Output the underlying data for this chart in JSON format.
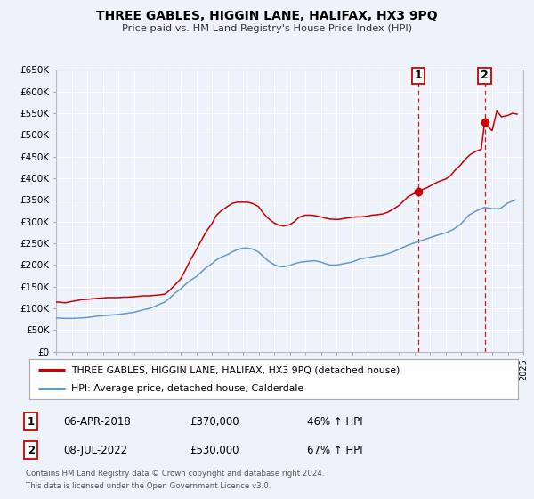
{
  "title": "THREE GABLES, HIGGIN LANE, HALIFAX, HX3 9PQ",
  "subtitle": "Price paid vs. HM Land Registry's House Price Index (HPI)",
  "legend_label_red": "THREE GABLES, HIGGIN LANE, HALIFAX, HX3 9PQ (detached house)",
  "legend_label_blue": "HPI: Average price, detached house, Calderdale",
  "footnote1": "Contains HM Land Registry data © Crown copyright and database right 2024.",
  "footnote2": "This data is licensed under the Open Government Licence v3.0.",
  "red_color": "#cc0000",
  "blue_color": "#6699cc",
  "marker1_date": 2018.27,
  "marker1_value": 370000,
  "marker2_date": 2022.52,
  "marker2_value": 530000,
  "table_entries": [
    {
      "num": "1",
      "date": "06-APR-2018",
      "price": "£370,000",
      "hpi": "46% ↑ HPI"
    },
    {
      "num": "2",
      "date": "08-JUL-2022",
      "price": "£530,000",
      "hpi": "67% ↑ HPI"
    }
  ],
  "ylim": [
    0,
    650000
  ],
  "xlim": [
    1995,
    2025
  ],
  "ytick_values": [
    0,
    50000,
    100000,
    150000,
    200000,
    250000,
    300000,
    350000,
    400000,
    450000,
    500000,
    550000,
    600000,
    650000
  ],
  "ytick_labels": [
    "£0",
    "£50K",
    "£100K",
    "£150K",
    "£200K",
    "£250K",
    "£300K",
    "£350K",
    "£400K",
    "£450K",
    "£500K",
    "£550K",
    "£600K",
    "£650K"
  ],
  "background_color": "#eef2fb",
  "plot_bg_color": "#eef2fb",
  "grid_color": "#ffffff",
  "red_data": {
    "years": [
      1995.0,
      1995.3,
      1995.6,
      1996.0,
      1996.3,
      1996.6,
      1997.0,
      1997.3,
      1997.6,
      1998.0,
      1998.3,
      1998.6,
      1999.0,
      1999.3,
      1999.6,
      2000.0,
      2000.3,
      2000.6,
      2001.0,
      2001.3,
      2001.6,
      2002.0,
      2002.3,
      2002.6,
      2003.0,
      2003.3,
      2003.6,
      2004.0,
      2004.3,
      2004.6,
      2005.0,
      2005.3,
      2005.6,
      2006.0,
      2006.3,
      2006.6,
      2007.0,
      2007.3,
      2007.6,
      2008.0,
      2008.3,
      2008.6,
      2009.0,
      2009.3,
      2009.6,
      2010.0,
      2010.3,
      2010.6,
      2011.0,
      2011.3,
      2011.6,
      2012.0,
      2012.3,
      2012.6,
      2013.0,
      2013.3,
      2013.6,
      2014.0,
      2014.3,
      2014.6,
      2015.0,
      2015.3,
      2015.6,
      2016.0,
      2016.3,
      2016.6,
      2017.0,
      2017.3,
      2017.6,
      2018.0,
      2018.27,
      2018.5,
      2018.8,
      2019.0,
      2019.3,
      2019.6,
      2020.0,
      2020.3,
      2020.6,
      2021.0,
      2021.3,
      2021.6,
      2022.0,
      2022.3,
      2022.52,
      2022.7,
      2023.0,
      2023.3,
      2023.6,
      2024.0,
      2024.3,
      2024.6
    ],
    "values": [
      115000,
      114000,
      113000,
      116000,
      118000,
      120000,
      121000,
      122000,
      123000,
      124000,
      125000,
      125000,
      125000,
      126000,
      126000,
      127000,
      128000,
      129000,
      129000,
      130000,
      131000,
      133000,
      142000,
      153000,
      168000,
      188000,
      210000,
      235000,
      255000,
      275000,
      295000,
      315000,
      325000,
      335000,
      342000,
      345000,
      345000,
      345000,
      342000,
      335000,
      320000,
      308000,
      297000,
      292000,
      290000,
      293000,
      300000,
      310000,
      315000,
      315000,
      314000,
      311000,
      308000,
      306000,
      305000,
      306000,
      308000,
      310000,
      311000,
      311000,
      313000,
      315000,
      316000,
      318000,
      322000,
      328000,
      337000,
      347000,
      358000,
      365000,
      370000,
      374000,
      378000,
      382000,
      388000,
      393000,
      398000,
      405000,
      418000,
      432000,
      445000,
      455000,
      463000,
      467000,
      530000,
      520000,
      510000,
      555000,
      542000,
      545000,
      550000,
      548000
    ]
  },
  "blue_data": {
    "years": [
      1995.0,
      1995.3,
      1995.6,
      1996.0,
      1996.3,
      1996.6,
      1997.0,
      1997.3,
      1997.6,
      1998.0,
      1998.3,
      1998.6,
      1999.0,
      1999.3,
      1999.6,
      2000.0,
      2000.3,
      2000.6,
      2001.0,
      2001.3,
      2001.6,
      2002.0,
      2002.3,
      2002.6,
      2003.0,
      2003.3,
      2003.6,
      2004.0,
      2004.3,
      2004.6,
      2005.0,
      2005.3,
      2005.6,
      2006.0,
      2006.3,
      2006.6,
      2007.0,
      2007.3,
      2007.6,
      2008.0,
      2008.3,
      2008.6,
      2009.0,
      2009.3,
      2009.6,
      2010.0,
      2010.3,
      2010.6,
      2011.0,
      2011.3,
      2011.6,
      2012.0,
      2012.3,
      2012.6,
      2013.0,
      2013.3,
      2013.6,
      2014.0,
      2014.3,
      2014.6,
      2015.0,
      2015.3,
      2015.6,
      2016.0,
      2016.3,
      2016.6,
      2017.0,
      2017.3,
      2017.6,
      2018.0,
      2018.5,
      2019.0,
      2019.5,
      2020.0,
      2020.5,
      2021.0,
      2021.5,
      2022.0,
      2022.5,
      2023.0,
      2023.5,
      2024.0,
      2024.5
    ],
    "values": [
      78000,
      77500,
      77000,
      77000,
      77500,
      78000,
      79000,
      80500,
      82000,
      83000,
      84000,
      85000,
      86000,
      87500,
      89000,
      91000,
      94000,
      97000,
      100000,
      104000,
      109000,
      115000,
      124000,
      134000,
      145000,
      155000,
      164000,
      173000,
      183000,
      193000,
      203000,
      212000,
      218000,
      224000,
      230000,
      235000,
      239000,
      239000,
      237000,
      230000,
      220000,
      210000,
      201000,
      197000,
      196000,
      199000,
      203000,
      206000,
      208000,
      209000,
      210000,
      207000,
      203000,
      200000,
      200000,
      202000,
      204000,
      207000,
      211000,
      215000,
      217000,
      219000,
      221000,
      223000,
      226000,
      230000,
      236000,
      241000,
      246000,
      251000,
      257000,
      263000,
      269000,
      274000,
      282000,
      295000,
      315000,
      325000,
      333000,
      330000,
      330000,
      343000,
      350000
    ]
  }
}
